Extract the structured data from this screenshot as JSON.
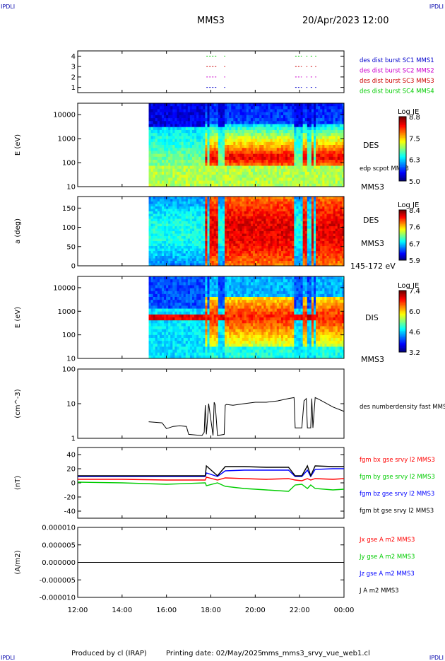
{
  "header": {
    "corner_label": "IPDLI",
    "spacecraft": "MMS3",
    "date": "20/Apr/2023 12:00"
  },
  "footer": {
    "produced_by": "Produced by cl (IRAP)",
    "printing_date": "Printing date: 02/May/2025",
    "filename": "mms_mms3_srvy_vue_web1.cl"
  },
  "colors": {
    "burst_sc1": "#0000cc",
    "burst_sc2": "#cc00cc",
    "burst_sc3": "#cc0000",
    "burst_sc4": "#00cc00",
    "bx": "#ff0000",
    "by": "#00cc00",
    "bz": "#0000ff",
    "bt": "#000000"
  },
  "time_axis": {
    "ticks": [
      "12:00",
      "14:00",
      "16:00",
      "18:00",
      "20:00",
      "22:00",
      "00:00"
    ],
    "start_hour": 12,
    "end_hour": 24
  },
  "chart_data": [
    {
      "type": "scatter",
      "panel": "burst",
      "ylim": [
        0.5,
        4.5
      ],
      "yticks": [
        "4",
        "3",
        "2",
        "1"
      ],
      "series": [
        {
          "name": "des dist burst SC1 MMS1",
          "level": 1
        },
        {
          "name": "des dist burst SC2 MMS2",
          "level": 2
        },
        {
          "name": "des dist burst SC3 MMS3",
          "level": 3
        },
        {
          "name": "des dist burst SC4 MMS4",
          "level": 4
        }
      ],
      "intervals": [
        [
          17.8,
          18.3
        ],
        [
          18.6,
          18.65
        ],
        [
          21.8,
          22.1
        ],
        [
          22.3,
          22.35
        ],
        [
          22.5,
          22.6
        ],
        [
          22.7,
          22.75
        ]
      ]
    },
    {
      "type": "heatmap",
      "panel": "des-energy",
      "ylabel": "E (eV)",
      "yscale": "log",
      "ylim": [
        10,
        30000
      ],
      "yticks": [
        "10000",
        "1000",
        "100",
        "10"
      ],
      "label": "DES",
      "spacecraft_label": "MMS3",
      "overlay_label": "edp scpot MMS3",
      "colorbar": {
        "title": "Log JE",
        "ticks": [
          "8.8",
          "7.5",
          "6.3",
          "5.0"
        ],
        "min": 5.0,
        "max": 8.8
      }
    },
    {
      "type": "heatmap",
      "panel": "des-pitch",
      "ylabel": "a (deg)",
      "ylim": [
        0,
        180
      ],
      "yticks": [
        "150",
        "100",
        "50",
        "0"
      ],
      "label": "DES",
      "spacecraft_label": "MMS3",
      "energy_range": "145-172 eV",
      "colorbar": {
        "title": "Log JE",
        "ticks": [
          "8.4",
          "7.6",
          "6.7",
          "5.9"
        ],
        "min": 5.9,
        "max": 8.4
      }
    },
    {
      "type": "heatmap",
      "panel": "dis-energy",
      "ylabel": "E (eV)",
      "yscale": "log",
      "ylim": [
        10,
        30000
      ],
      "yticks": [
        "10000",
        "1000",
        "100",
        "10"
      ],
      "label": "DIS",
      "spacecraft_label": "MMS3",
      "colorbar": {
        "title": "Log JE",
        "ticks": [
          "7.4",
          "6.0",
          "4.6",
          "3.2"
        ],
        "min": 3.2,
        "max": 7.4
      }
    },
    {
      "type": "line",
      "panel": "density",
      "ylabel": "(cm^-3)",
      "yscale": "log",
      "ylim": [
        1,
        100
      ],
      "yticks": [
        "100",
        "10",
        "1"
      ],
      "series": [
        {
          "name": "des numberdensity fast MMS3",
          "x": [
            15.2,
            15.8,
            16.0,
            16.3,
            16.6,
            16.9,
            17.0,
            17.6,
            17.7,
            17.75,
            17.8,
            17.9,
            18.1,
            18.15,
            18.2,
            18.3,
            18.6,
            18.65,
            18.7,
            19.0,
            19.5,
            20.0,
            20.5,
            21.0,
            21.5,
            21.75,
            21.8,
            22.1,
            22.2,
            22.3,
            22.35,
            22.5,
            22.55,
            22.6,
            22.7,
            22.8,
            23.0,
            23.5,
            24.0
          ],
          "y": [
            3.0,
            2.8,
            1.9,
            2.2,
            2.3,
            2.2,
            1.3,
            1.2,
            1.5,
            9.0,
            1.3,
            10.0,
            1.2,
            11.0,
            9.0,
            1.2,
            1.3,
            9.0,
            9.5,
            9.0,
            10.0,
            11.0,
            11.0,
            12.0,
            14.0,
            15.0,
            2.0,
            2.0,
            12.0,
            14.0,
            2.0,
            2.0,
            14.0,
            2.0,
            15.0,
            14.0,
            12.0,
            8.0,
            6.0
          ]
        }
      ]
    },
    {
      "type": "line",
      "panel": "magnetic-field",
      "ylabel": "(nT)",
      "ylim": [
        -50,
        50
      ],
      "yticks": [
        "40",
        "20",
        "0",
        "-20",
        "-40"
      ],
      "series": [
        {
          "name": "fgm bx gse srvy l2 MMS3",
          "x": [
            12,
            14,
            16,
            17.75,
            17.8,
            18.3,
            18.65,
            19.5,
            20.5,
            21.5,
            21.8,
            22.1,
            22.35,
            22.5,
            22.7,
            23.5,
            24
          ],
          "y": [
            5,
            5,
            4,
            4,
            8,
            4,
            7,
            6,
            5,
            6,
            4,
            3,
            6,
            4,
            6,
            5,
            6
          ]
        },
        {
          "name": "fgm by gse srvy l2 MMS3",
          "x": [
            12,
            14,
            16,
            17.75,
            17.8,
            18.3,
            18.65,
            19.5,
            20.5,
            21.5,
            21.8,
            22.1,
            22.35,
            22.5,
            22.7,
            23.5,
            24
          ],
          "y": [
            1,
            0,
            -2,
            0,
            -4,
            0,
            -5,
            -8,
            -10,
            -12,
            -3,
            -2,
            -8,
            -3,
            -8,
            -10,
            -9
          ]
        },
        {
          "name": "fgm bz gse srvy l2 MMS3",
          "x": [
            12,
            14,
            16,
            17.75,
            17.8,
            18.3,
            18.65,
            19.5,
            20.5,
            21.5,
            21.8,
            22.1,
            22.35,
            22.5,
            22.7,
            23.5,
            24
          ],
          "y": [
            9,
            9,
            9,
            9,
            14,
            9,
            17,
            18,
            18,
            18,
            9,
            9,
            18,
            9,
            19,
            20,
            20
          ]
        },
        {
          "name": "fgm bt gse srvy l2 MMS3",
          "x": [
            12,
            14,
            16,
            17.75,
            17.8,
            18.3,
            18.65,
            19.5,
            20.5,
            21.5,
            21.8,
            22.1,
            22.35,
            22.5,
            22.7,
            23.5,
            24
          ],
          "y": [
            10,
            10,
            10,
            10,
            24,
            10,
            23,
            23,
            22,
            22,
            10,
            10,
            24,
            10,
            24,
            23,
            23
          ]
        }
      ]
    },
    {
      "type": "line",
      "panel": "current-density",
      "ylabel": "(A/m2)",
      "ylim": [
        -1e-05,
        1e-05
      ],
      "yticks": [
        "0.000010",
        "0.000005",
        "0.000000",
        "-0.000005",
        "-0.000010"
      ],
      "series": [
        {
          "name": "Jx gse A m2 MMS3",
          "x": [
            12,
            24
          ],
          "y": [
            0,
            0
          ]
        },
        {
          "name": "Jy gse A m2 MMS3",
          "x": [
            12,
            24
          ],
          "y": [
            0,
            0
          ]
        },
        {
          "name": "Jz gse A m2 MMS3",
          "x": [
            12,
            24
          ],
          "y": [
            0,
            0
          ]
        },
        {
          "name": "J A m2 MMS3",
          "x": [
            12,
            24
          ],
          "y": [
            0,
            0
          ]
        }
      ]
    }
  ]
}
